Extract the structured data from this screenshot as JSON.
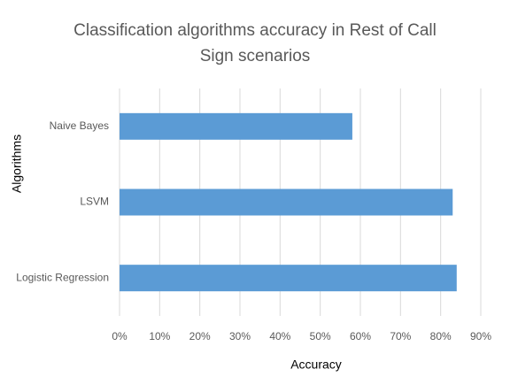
{
  "chart_data": {
    "type": "hbar",
    "title": [
      "Classification algorithms accuracy in Rest of Call",
      "Sign scenarios"
    ],
    "x_label": "Accuracy",
    "y_label": "Algorithms",
    "categories": [
      "Naive Bayes",
      "LSVM",
      "Logistic Regression"
    ],
    "values": [
      58,
      83,
      84
    ],
    "color": "#5b9bd5",
    "xlim": [
      0,
      90
    ],
    "xticks": [
      {
        "value": 0,
        "label": "0%"
      },
      {
        "value": 10,
        "label": "10%"
      },
      {
        "value": 20,
        "label": "20%"
      },
      {
        "value": 30,
        "label": "30%"
      },
      {
        "value": 40,
        "label": "40%"
      },
      {
        "value": 50,
        "label": "50%"
      },
      {
        "value": 60,
        "label": "60%"
      },
      {
        "value": 70,
        "label": "70%"
      },
      {
        "value": 80,
        "label": "80%"
      },
      {
        "value": 90,
        "label": "90%"
      }
    ],
    "grid": true
  }
}
